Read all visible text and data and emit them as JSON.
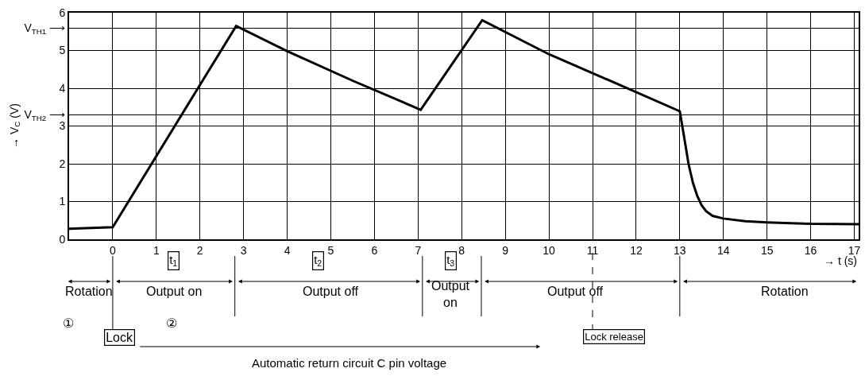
{
  "chart_data": {
    "type": "line",
    "title": "Automatic return circuit C pin voltage",
    "xlabel": "→ t (s)",
    "ylabel": "→ V$_{C}$ (V)",
    "x": [
      -1,
      0,
      2.83,
      4,
      5.5,
      7.06,
      8.47,
      10,
      11.5,
      13,
      13.1,
      13.2,
      13.3,
      13.4,
      13.5,
      13.6,
      13.75,
      14,
      14.5,
      15,
      16,
      17.1
    ],
    "series": [
      {
        "color": "#000000",
        "values": [
          0.28,
          0.32,
          5.65,
          4.98,
          4.2,
          3.43,
          5.8,
          4.9,
          4.15,
          3.39,
          2.7,
          2.0,
          1.5,
          1.15,
          0.9,
          0.75,
          0.62,
          0.55,
          0.48,
          0.45,
          0.41,
          0.4
        ]
      }
    ],
    "xlim": [
      -1,
      17.1
    ],
    "ylim": [
      0,
      6
    ],
    "xticks": [
      0,
      1,
      2,
      3,
      4,
      5,
      6,
      7,
      8,
      9,
      10,
      11,
      12,
      13,
      14,
      15,
      16,
      17
    ],
    "yticks": [
      0,
      1,
      2,
      3,
      4,
      5,
      6,
      {
        "value": 5.6,
        "label": "V$_{TH1}$ ⟶"
      },
      {
        "value": 3.3,
        "label": "V$_{TH2}$ ⟶"
      }
    ],
    "grid": true,
    "marker": "none",
    "line_style": "solid",
    "annotations": [
      "t$_{1}$",
      "t$_{2}$",
      "t$_{3}$",
      "Rotation",
      "Output on",
      "Output off",
      "Output\non",
      "Output off",
      "Rotation",
      "①",
      "②",
      "Lock",
      "Lock release"
    ]
  }
}
